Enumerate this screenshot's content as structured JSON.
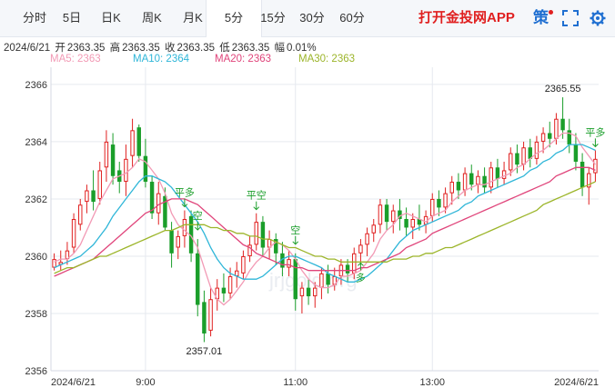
{
  "tabs": [
    {
      "label": "分时",
      "active": false
    },
    {
      "label": "5日",
      "active": false
    },
    {
      "label": "日K",
      "active": false
    },
    {
      "label": "周K",
      "active": false
    },
    {
      "label": "月K",
      "active": false
    },
    {
      "label": "5分",
      "active": true
    },
    {
      "label": "15分",
      "active": false
    },
    {
      "label": "30分",
      "active": false
    },
    {
      "label": "60分",
      "active": false
    }
  ],
  "promo": "打开金投网APP",
  "ce_label": "策",
  "ohlc": {
    "date": "2024/6/21",
    "open_label": "开",
    "open": "2363.35",
    "high_label": "高",
    "high": "2363.35",
    "close_label": "收",
    "close": "2363.35",
    "low_label": "低",
    "low": "2363.35",
    "amp_label": "幅",
    "amp": "0.01%"
  },
  "ma_legend": [
    {
      "label": "MA5: 2363",
      "color": "#f29ab5"
    },
    {
      "label": "MA10: 2364",
      "color": "#2fb6d8"
    },
    {
      "label": "MA20: 2363",
      "color": "#e0457b"
    },
    {
      "label": "MA30: 2363",
      "color": "#9cb52a"
    }
  ],
  "watermark": "jrjgold.org",
  "colors": {
    "up": "#e02020",
    "down": "#1a9e2a",
    "grid": "#e6e9ef",
    "axis_text": "#333333"
  },
  "chart_data": {
    "type": "candlestick",
    "x_tick_labels": [
      "2024/6/21",
      "9:00",
      "11:00",
      "13:00",
      "2024/6/21"
    ],
    "y_tick_labels": [
      2356,
      2358,
      2360,
      2362,
      2364,
      2366
    ],
    "ylim": [
      2356,
      2366.6
    ],
    "annotations": [
      {
        "text": "2365.55",
        "value": 2365.55,
        "index": 78
      },
      {
        "text": "2357.01",
        "value": 2357.01,
        "index": 23
      },
      {
        "text": "平多",
        "index": 20
      },
      {
        "text": "空",
        "index": 22
      },
      {
        "text": "平空",
        "index": 31
      },
      {
        "text": "空",
        "index": 37
      },
      {
        "text": "多",
        "index": 47
      },
      {
        "text": "平多",
        "index": 83
      }
    ],
    "candles": [
      [
        2359.6,
        2360.1,
        2359.5,
        2359.9
      ],
      [
        2359.7,
        2360.2,
        2359.5,
        2359.8
      ],
      [
        2359.9,
        2360.5,
        2359.7,
        2360.2
      ],
      [
        2360.3,
        2361.5,
        2360.1,
        2361.3
      ],
      [
        2361.1,
        2362.0,
        2360.9,
        2361.8
      ],
      [
        2361.9,
        2362.5,
        2361.5,
        2362.3
      ],
      [
        2362.3,
        2363.0,
        2361.6,
        2361.9
      ],
      [
        2362.0,
        2363.3,
        2361.8,
        2363.0
      ],
      [
        2363.1,
        2364.4,
        2362.6,
        2364.0
      ],
      [
        2363.9,
        2364.3,
        2362.5,
        2362.8
      ],
      [
        2363.0,
        2363.3,
        2362.2,
        2362.6
      ],
      [
        2362.6,
        2363.9,
        2362.1,
        2363.4
      ],
      [
        2363.5,
        2364.8,
        2363.1,
        2364.4
      ],
      [
        2364.5,
        2364.6,
        2363.3,
        2363.5
      ],
      [
        2363.5,
        2364.1,
        2362.4,
        2362.6
      ],
      [
        2362.6,
        2362.8,
        2361.3,
        2361.5
      ],
      [
        2361.5,
        2362.6,
        2361.1,
        2362.2
      ],
      [
        2362.1,
        2362.4,
        2360.9,
        2361.0
      ],
      [
        2360.9,
        2361.2,
        2359.6,
        2360.1
      ],
      [
        2360.3,
        2360.9,
        2359.9,
        2360.7
      ],
      [
        2360.7,
        2361.6,
        2360.3,
        2361.3
      ],
      [
        2361.4,
        2361.6,
        2359.8,
        2360.1
      ],
      [
        2360.1,
        2360.6,
        2357.9,
        2358.3
      ],
      [
        2358.4,
        2358.8,
        2357.0,
        2357.3
      ],
      [
        2357.4,
        2358.9,
        2357.2,
        2358.5
      ],
      [
        2358.5,
        2359.2,
        2358.1,
        2358.9
      ],
      [
        2358.9,
        2359.4,
        2358.4,
        2358.7
      ],
      [
        2358.7,
        2359.6,
        2358.5,
        2359.3
      ],
      [
        2359.3,
        2359.8,
        2358.9,
        2359.5
      ],
      [
        2359.4,
        2360.2,
        2359.2,
        2360.0
      ],
      [
        2360.0,
        2360.7,
        2359.8,
        2360.4
      ],
      [
        2360.4,
        2361.5,
        2360.2,
        2361.2
      ],
      [
        2361.2,
        2361.4,
        2360.0,
        2360.3
      ],
      [
        2360.3,
        2360.9,
        2359.9,
        2360.6
      ],
      [
        2360.6,
        2360.8,
        2359.7,
        2360.1
      ],
      [
        2360.1,
        2360.5,
        2359.3,
        2359.6
      ],
      [
        2359.6,
        2360.2,
        2359.3,
        2359.9
      ],
      [
        2359.9,
        2360.1,
        2358.1,
        2358.5
      ],
      [
        2358.6,
        2359.1,
        2358.0,
        2358.9
      ],
      [
        2358.9,
        2359.2,
        2358.3,
        2358.6
      ],
      [
        2358.6,
        2359.1,
        2358.2,
        2358.9
      ],
      [
        2358.9,
        2359.6,
        2358.5,
        2359.4
      ],
      [
        2359.4,
        2359.7,
        2358.7,
        2359.0
      ],
      [
        2359.0,
        2359.6,
        2358.8,
        2359.3
      ],
      [
        2359.3,
        2359.9,
        2359.0,
        2359.7
      ],
      [
        2359.7,
        2359.9,
        2359.1,
        2359.4
      ],
      [
        2359.4,
        2360.3,
        2359.2,
        2360.1
      ],
      [
        2360.1,
        2360.6,
        2359.7,
        2360.4
      ],
      [
        2360.4,
        2361.0,
        2360.0,
        2360.8
      ],
      [
        2360.8,
        2361.3,
        2360.5,
        2361.1
      ],
      [
        2361.1,
        2362.0,
        2360.8,
        2361.8
      ],
      [
        2361.8,
        2362.0,
        2360.9,
        2361.2
      ],
      [
        2361.2,
        2361.8,
        2360.8,
        2361.6
      ],
      [
        2361.6,
        2362.0,
        2360.9,
        2361.3
      ],
      [
        2361.3,
        2361.7,
        2360.7,
        2361.0
      ],
      [
        2361.0,
        2361.5,
        2360.6,
        2361.3
      ],
      [
        2361.3,
        2361.8,
        2360.9,
        2361.1
      ],
      [
        2361.1,
        2361.6,
        2360.8,
        2361.4
      ],
      [
        2361.4,
        2362.2,
        2361.2,
        2362.0
      ],
      [
        2362.0,
        2362.3,
        2361.4,
        2361.7
      ],
      [
        2361.7,
        2362.4,
        2361.5,
        2362.2
      ],
      [
        2362.2,
        2362.8,
        2361.8,
        2362.6
      ],
      [
        2362.6,
        2362.9,
        2362.0,
        2362.3
      ],
      [
        2362.3,
        2363.1,
        2362.1,
        2362.9
      ],
      [
        2362.9,
        2363.2,
        2362.3,
        2362.5
      ],
      [
        2362.5,
        2363.0,
        2362.2,
        2362.8
      ],
      [
        2362.8,
        2363.1,
        2362.2,
        2362.4
      ],
      [
        2362.4,
        2363.3,
        2362.2,
        2363.1
      ],
      [
        2363.1,
        2363.4,
        2362.4,
        2362.7
      ],
      [
        2362.7,
        2363.3,
        2362.5,
        2363.0
      ],
      [
        2363.0,
        2363.8,
        2362.8,
        2363.6
      ],
      [
        2363.6,
        2363.9,
        2362.9,
        2363.2
      ],
      [
        2363.2,
        2364.0,
        2363.0,
        2363.8
      ],
      [
        2363.8,
        2364.1,
        2363.1,
        2363.4
      ],
      [
        2363.4,
        2364.2,
        2363.2,
        2364.0
      ],
      [
        2364.0,
        2364.5,
        2363.6,
        2364.3
      ],
      [
        2364.3,
        2364.7,
        2363.8,
        2364.1
      ],
      [
        2364.1,
        2365.0,
        2363.9,
        2364.8
      ],
      [
        2364.8,
        2365.55,
        2364.1,
        2364.4
      ],
      [
        2364.4,
        2364.8,
        2363.6,
        2363.9
      ],
      [
        2363.9,
        2364.3,
        2363.0,
        2363.3
      ],
      [
        2363.3,
        2363.6,
        2362.1,
        2362.4
      ],
      [
        2362.4,
        2363.1,
        2361.8,
        2362.9
      ],
      [
        2362.9,
        2363.7,
        2362.6,
        2363.4
      ]
    ],
    "ma": {
      "MA5": [
        2359.8,
        2359.9,
        2359.9,
        2360.1,
        2360.4,
        2360.9,
        2361.4,
        2361.9,
        2362.3,
        2362.7,
        2362.8,
        2362.9,
        2363.1,
        2363.4,
        2363.3,
        2363.0,
        2362.7,
        2362.2,
        2361.5,
        2361.1,
        2360.9,
        2360.7,
        2360.3,
        2359.6,
        2358.9,
        2358.5,
        2358.3,
        2358.5,
        2358.8,
        2359.1,
        2359.5,
        2359.8,
        2360.0,
        2360.3,
        2360.5,
        2360.4,
        2360.2,
        2359.9,
        2359.5,
        2359.2,
        2359.0,
        2358.9,
        2358.9,
        2359.0,
        2359.3,
        2359.3,
        2359.4,
        2359.5,
        2359.8,
        2360.1,
        2360.6,
        2360.9,
        2361.1,
        2361.4,
        2361.5,
        2361.4,
        2361.3,
        2361.2,
        2361.4,
        2361.5,
        2361.6,
        2361.9,
        2362.1,
        2362.3,
        2362.4,
        2362.5,
        2362.5,
        2362.6,
        2362.7,
        2362.8,
        2362.9,
        2363.1,
        2363.2,
        2363.4,
        2363.6,
        2363.7,
        2363.9,
        2364.1,
        2364.3,
        2364.3,
        2364.2,
        2363.8,
        2363.5,
        2363.2
      ],
      "MA10": [
        2359.6,
        2359.7,
        2359.8,
        2359.9,
        2360.0,
        2360.2,
        2360.4,
        2360.7,
        2361.0,
        2361.4,
        2361.7,
        2362.0,
        2362.3,
        2362.6,
        2362.8,
        2362.8,
        2362.7,
        2362.6,
        2362.4,
        2362.1,
        2361.8,
        2361.5,
        2361.2,
        2360.8,
        2360.3,
        2359.9,
        2359.6,
        2359.4,
        2359.3,
        2359.2,
        2359.2,
        2359.2,
        2359.3,
        2359.5,
        2359.7,
        2359.9,
        2360.0,
        2360.0,
        2359.9,
        2359.8,
        2359.7,
        2359.6,
        2359.4,
        2359.3,
        2359.2,
        2359.1,
        2359.1,
        2359.2,
        2359.3,
        2359.5,
        2359.7,
        2359.9,
        2360.2,
        2360.5,
        2360.7,
        2360.9,
        2361.0,
        2361.1,
        2361.2,
        2361.3,
        2361.4,
        2361.5,
        2361.6,
        2361.8,
        2361.9,
        2362.1,
        2362.2,
        2362.3,
        2362.4,
        2362.5,
        2362.6,
        2362.7,
        2362.8,
        2363.0,
        2363.1,
        2363.3,
        2363.4,
        2363.6,
        2363.7,
        2363.9,
        2363.9,
        2363.9,
        2363.8,
        2363.7
      ],
      "MA20": [
        2359.3,
        2359.4,
        2359.5,
        2359.6,
        2359.7,
        2359.8,
        2359.9,
        2360.1,
        2360.3,
        2360.5,
        2360.7,
        2360.9,
        2361.1,
        2361.3,
        2361.5,
        2361.6,
        2361.8,
        2361.9,
        2362.0,
        2362.0,
        2362.0,
        2361.9,
        2361.8,
        2361.6,
        2361.4,
        2361.2,
        2361.0,
        2360.8,
        2360.6,
        2360.4,
        2360.3,
        2360.1,
        2360.0,
        2359.9,
        2359.8,
        2359.7,
        2359.7,
        2359.6,
        2359.6,
        2359.5,
        2359.5,
        2359.5,
        2359.5,
        2359.5,
        2359.5,
        2359.5,
        2359.5,
        2359.6,
        2359.6,
        2359.7,
        2359.8,
        2359.9,
        2360.0,
        2360.1,
        2360.3,
        2360.4,
        2360.5,
        2360.6,
        2360.8,
        2360.9,
        2361.0,
        2361.1,
        2361.2,
        2361.3,
        2361.4,
        2361.5,
        2361.6,
        2361.7,
        2361.8,
        2361.9,
        2362.0,
        2362.1,
        2362.2,
        2362.3,
        2362.4,
        2362.5,
        2362.6,
        2362.8,
        2362.9,
        2363.0,
        2363.1,
        2363.1,
        2363.1,
        2363.0
      ],
      "MA30": [
        2359.4,
        2359.5,
        2359.6,
        2359.6,
        2359.7,
        2359.8,
        2359.9,
        2360.0,
        2360.0,
        2360.1,
        2360.2,
        2360.3,
        2360.4,
        2360.5,
        2360.6,
        2360.7,
        2360.8,
        2360.9,
        2360.9,
        2361.0,
        2361.1,
        2361.1,
        2361.1,
        2361.1,
        2361.0,
        2361.0,
        2360.9,
        2360.9,
        2360.8,
        2360.8,
        2360.7,
        2360.7,
        2360.6,
        2360.6,
        2360.5,
        2360.4,
        2360.3,
        2360.3,
        2360.2,
        2360.1,
        2360.0,
        2360.0,
        2359.9,
        2359.9,
        2359.8,
        2359.8,
        2359.8,
        2359.8,
        2359.8,
        2359.8,
        2359.8,
        2359.8,
        2359.9,
        2359.9,
        2359.9,
        2360.0,
        2360.0,
        2360.1,
        2360.1,
        2360.2,
        2360.3,
        2360.3,
        2360.4,
        2360.5,
        2360.6,
        2360.7,
        2360.8,
        2360.9,
        2361.0,
        2361.1,
        2361.2,
        2361.3,
        2361.4,
        2361.5,
        2361.6,
        2361.8,
        2361.9,
        2362.0,
        2362.1,
        2362.2,
        2362.3,
        2362.4,
        2362.5,
        2362.6
      ]
    }
  }
}
